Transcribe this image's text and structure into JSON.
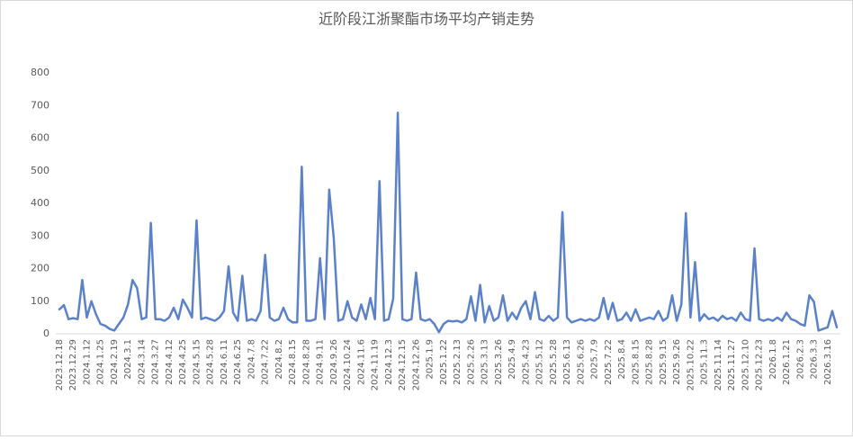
{
  "chart_data": {
    "type": "line",
    "title": "近阶段江浙聚酯市场平均产销走势",
    "categories": [
      "2023.12.18",
      null,
      null,
      "2023.12.29",
      null,
      null,
      "2024.1.12",
      null,
      null,
      "2024.1.25",
      null,
      null,
      "2024.2.19",
      null,
      null,
      "2024.3.1",
      null,
      null,
      "2024.3.14",
      null,
      null,
      "2024.3.27",
      null,
      null,
      "2024.4.12",
      null,
      null,
      "2024.4.25",
      null,
      null,
      "2024.5.15",
      null,
      null,
      "2024.5.28",
      null,
      null,
      "2024.6.11",
      null,
      null,
      "2024.6.25",
      null,
      null,
      "2024.7.8",
      null,
      null,
      "2024.7.22",
      null,
      null,
      "2024.8.2",
      null,
      null,
      "2024.8.15",
      null,
      null,
      "2024.8.28",
      null,
      null,
      "2024.9.11",
      null,
      null,
      "2024.9.26",
      null,
      null,
      "2024.10.24",
      null,
      null,
      "2024.11.6",
      null,
      null,
      "2024.11.19",
      null,
      null,
      "2024.12.3",
      null,
      null,
      "2024.12.15",
      null,
      null,
      "2024.12.26",
      null,
      null,
      "2025.1.9",
      null,
      null,
      "2025.1.22",
      null,
      null,
      "2025.2.13",
      null,
      null,
      "2025.2.26",
      null,
      null,
      "2025.3.13",
      null,
      null,
      "2025.3.26",
      null,
      null,
      "2025.4.9",
      null,
      null,
      "2025.4.23",
      null,
      null,
      "2025.5.12",
      null,
      null,
      "2025.5.28",
      null,
      null,
      "2025.6.13",
      null,
      null,
      "2025.6.26",
      null,
      null,
      "2025.7.9",
      null,
      null,
      "2025.7.22",
      null,
      null,
      "2025.8.4",
      null,
      null,
      "2025.8.15",
      null,
      null,
      "2025.8.28",
      null,
      null,
      "2025.9.15",
      null,
      null,
      "2025.9.26",
      null,
      null,
      "2025.10.22",
      null,
      null,
      "2025.11.3",
      null,
      null,
      "2025.11.14",
      null,
      null,
      "2025.11.27",
      null,
      null,
      "2025.12.10",
      null,
      null,
      "2025.12.23",
      null,
      null,
      "2026.1.8",
      null,
      null,
      "2026.1.21",
      null,
      null,
      "2026.2.3",
      null,
      null,
      "2026.3.3",
      null,
      null,
      "2026.3.16",
      null,
      null
    ],
    "values": [
      75,
      88,
      45,
      48,
      45,
      165,
      50,
      100,
      60,
      30,
      25,
      15,
      10,
      30,
      50,
      90,
      165,
      140,
      45,
      50,
      340,
      45,
      45,
      40,
      50,
      80,
      45,
      105,
      80,
      50,
      348,
      45,
      50,
      45,
      40,
      50,
      70,
      207,
      65,
      40,
      178,
      40,
      45,
      40,
      70,
      242,
      50,
      40,
      45,
      80,
      45,
      35,
      35,
      512,
      40,
      40,
      45,
      232,
      45,
      442,
      293,
      40,
      45,
      100,
      50,
      40,
      90,
      45,
      110,
      45,
      468,
      40,
      45,
      108,
      678,
      45,
      40,
      45,
      188,
      45,
      40,
      45,
      30,
      5,
      30,
      40,
      38,
      40,
      35,
      45,
      115,
      40,
      150,
      35,
      85,
      40,
      50,
      118,
      40,
      65,
      45,
      80,
      100,
      45,
      128,
      45,
      40,
      55,
      40,
      50,
      373,
      50,
      35,
      40,
      45,
      40,
      45,
      40,
      50,
      110,
      45,
      95,
      40,
      45,
      65,
      40,
      75,
      40,
      45,
      50,
      45,
      70,
      40,
      50,
      118,
      40,
      90,
      370,
      50,
      220,
      40,
      60,
      45,
      50,
      40,
      55,
      45,
      50,
      40,
      65,
      45,
      40,
      262,
      45,
      40,
      45,
      40,
      50,
      40,
      65,
      45,
      40,
      30,
      25,
      118,
      98,
      10,
      15,
      20,
      70,
      20
    ],
    "color": "#5b82c9",
    "ylim": [
      0,
      800
    ],
    "yticks": [
      0,
      100,
      200,
      300,
      400,
      500,
      600,
      700,
      800
    ],
    "grid": false
  }
}
